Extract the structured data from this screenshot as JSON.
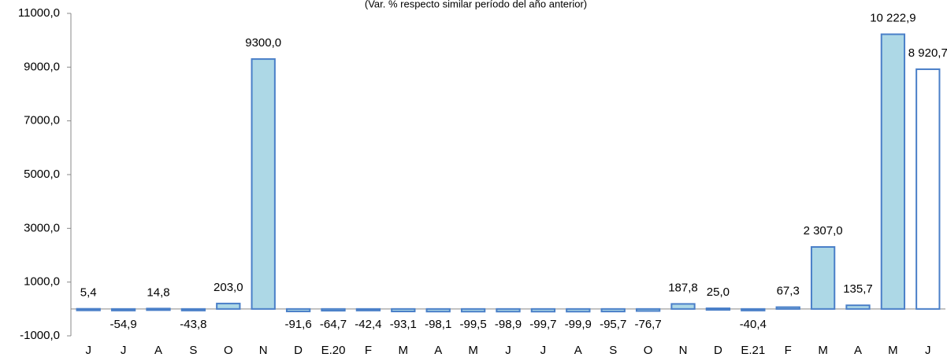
{
  "chart_data": {
    "type": "bar",
    "title": "(Var. % respecto similar período del año anterior)",
    "categories": [
      "J",
      "J",
      "A",
      "S",
      "O",
      "N",
      "D",
      "E.20",
      "F",
      "M",
      "A",
      "M",
      "J",
      "J",
      "A",
      "S",
      "O",
      "N",
      "D",
      "E.21",
      "F",
      "M",
      "A",
      "M",
      "J"
    ],
    "values": [
      5.4,
      -54.9,
      14.8,
      -43.8,
      203.0,
      9300.0,
      -91.6,
      -64.7,
      -42.4,
      -93.1,
      -98.1,
      -99.5,
      -98.9,
      -99.7,
      -99.9,
      -95.7,
      -76.7,
      187.8,
      25.0,
      -40.4,
      67.3,
      2307.0,
      135.7,
      10222.9,
      8920.7
    ],
    "value_labels": [
      "5,4",
      "-54,9",
      "14,8",
      "-43,8",
      "203,0",
      "9300,0",
      "-91,6",
      "-64,7",
      "-42,4",
      "-93,1",
      "-98,1",
      "-99,5",
      "-98,9",
      "-99,7",
      "-99,9",
      "-95,7",
      "-76,7",
      "187,8",
      "25,0",
      "-40,4",
      "67,3",
      "2 307,0",
      "135,7",
      "10 222,9",
      "8 920,7"
    ],
    "colors": [
      "#add8e6",
      "#add8e6",
      "#add8e6",
      "#add8e6",
      "#add8e6",
      "#add8e6",
      "#add8e6",
      "#add8e6",
      "#add8e6",
      "#add8e6",
      "#add8e6",
      "#add8e6",
      "#add8e6",
      "#add8e6",
      "#add8e6",
      "#add8e6",
      "#add8e6",
      "#add8e6",
      "#add8e6",
      "#add8e6",
      "#add8e6",
      "#add8e6",
      "#add8e6",
      "#add8e6",
      "#ffffff"
    ],
    "edge_color": "#4a7fc8",
    "ylim": [
      -1000,
      11000
    ],
    "yticks": [
      {
        "value": -1000,
        "label": "-1000,0"
      },
      {
        "value": 1000,
        "label": "1000,0"
      },
      {
        "value": 3000,
        "label": "3000,0"
      },
      {
        "value": 5000,
        "label": "5000,0"
      },
      {
        "value": 7000,
        "label": "7000,0"
      },
      {
        "value": 9000,
        "label": "9000,0"
      },
      {
        "value": 11000,
        "label": "11000,0"
      }
    ],
    "grid": false
  }
}
